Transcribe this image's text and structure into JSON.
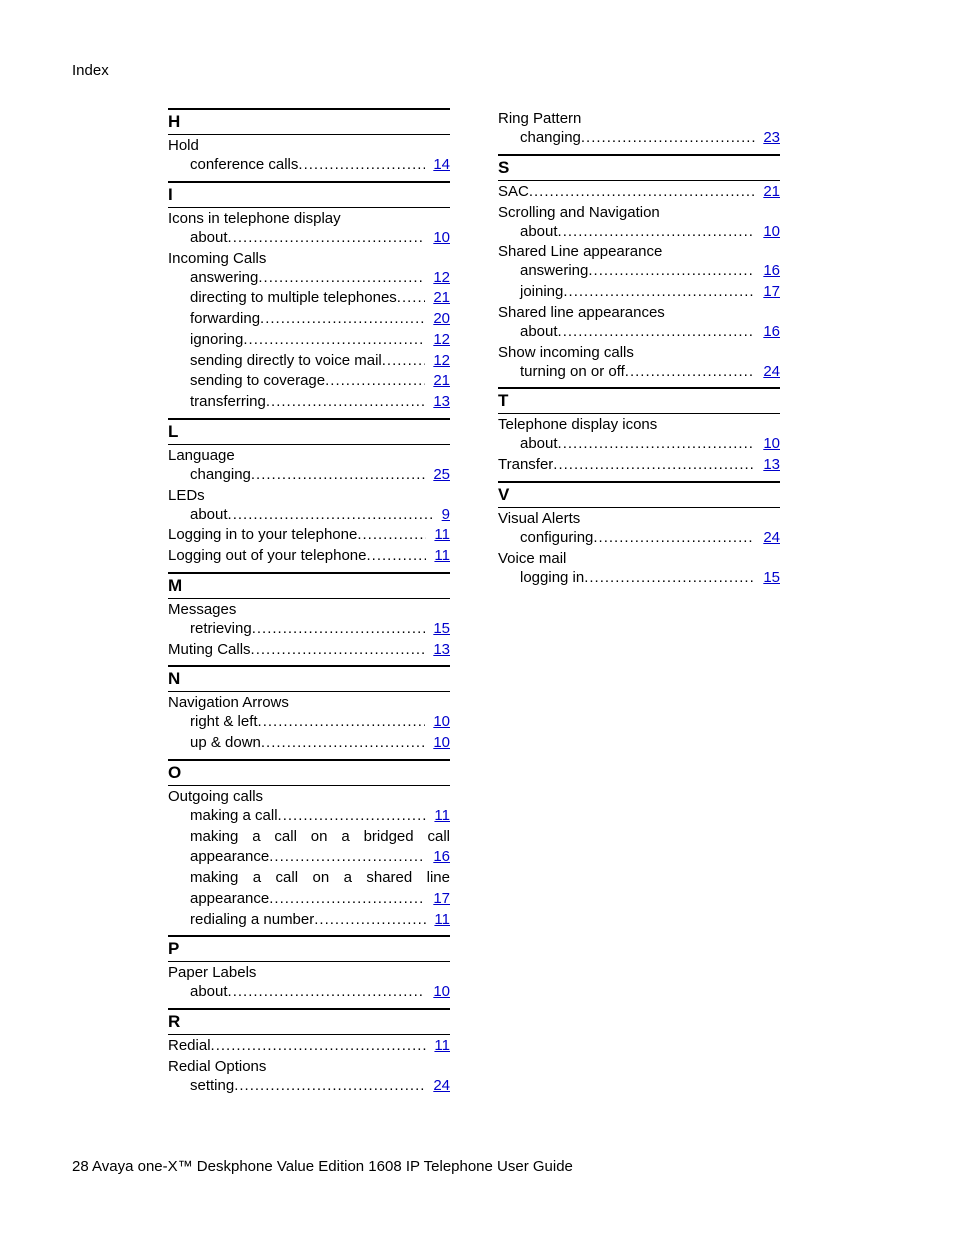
{
  "header": "Index",
  "footer": "28   Avaya one-X™ Deskphone Value Edition   1608 IP Telephone   User Guide",
  "link_color": "#0000cc",
  "left": [
    {
      "type": "letter",
      "text": "H"
    },
    {
      "type": "parent",
      "text": "Hold"
    },
    {
      "type": "sub",
      "text": "conference calls",
      "page": "14"
    },
    {
      "type": "letter",
      "text": "I"
    },
    {
      "type": "parent",
      "text": "Icons in telephone display"
    },
    {
      "type": "sub",
      "text": "about",
      "page": "10"
    },
    {
      "type": "parent",
      "text": "Incoming Calls"
    },
    {
      "type": "sub",
      "text": "answering",
      "page": "12"
    },
    {
      "type": "sub",
      "text": "directing to multiple telephones",
      "page": "21"
    },
    {
      "type": "sub",
      "text": "forwarding",
      "page": "20"
    },
    {
      "type": "sub",
      "text": "ignoring",
      "page": "12"
    },
    {
      "type": "sub",
      "text": "sending directly to voice mail",
      "page": "12"
    },
    {
      "type": "sub",
      "text": "sending to coverage",
      "page": "21"
    },
    {
      "type": "sub",
      "text": "transferring",
      "page": "13"
    },
    {
      "type": "letter",
      "text": "L"
    },
    {
      "type": "parent",
      "text": "Language"
    },
    {
      "type": "sub",
      "text": "changing",
      "page": "25"
    },
    {
      "type": "parent",
      "text": "LEDs"
    },
    {
      "type": "sub",
      "text": "about",
      "page": "9"
    },
    {
      "type": "top",
      "text": "Logging in to your telephone",
      "page": "11"
    },
    {
      "type": "top",
      "text": "Logging out of your telephone",
      "page": "11"
    },
    {
      "type": "letter",
      "text": "M"
    },
    {
      "type": "parent",
      "text": "Messages"
    },
    {
      "type": "sub",
      "text": "retrieving",
      "page": "15"
    },
    {
      "type": "top",
      "text": "Muting Calls",
      "page": "13"
    },
    {
      "type": "letter",
      "text": "N"
    },
    {
      "type": "parent",
      "text": "Navigation Arrows"
    },
    {
      "type": "sub",
      "text": "right & left",
      "page": "10"
    },
    {
      "type": "sub",
      "text": "up & down",
      "page": "10"
    },
    {
      "type": "letter",
      "text": "O"
    },
    {
      "type": "parent",
      "text": "Outgoing calls"
    },
    {
      "type": "sub",
      "text": "making a call",
      "page": "11"
    },
    {
      "type": "wrap-justify",
      "text": "making a call on a bridged call"
    },
    {
      "type": "wrap-end",
      "text": "appearance",
      "page": "16"
    },
    {
      "type": "wrap-justify",
      "text": "making a call on a shared line"
    },
    {
      "type": "wrap-end",
      "text": "appearance",
      "page": "17"
    },
    {
      "type": "sub",
      "text": "redialing a number",
      "page": "11"
    },
    {
      "type": "letter",
      "text": "P"
    },
    {
      "type": "parent",
      "text": "Paper Labels"
    },
    {
      "type": "sub",
      "text": "about",
      "page": "10"
    },
    {
      "type": "letter",
      "text": "R"
    },
    {
      "type": "top",
      "text": "Redial",
      "page": "11"
    },
    {
      "type": "parent",
      "text": "Redial Options"
    },
    {
      "type": "sub",
      "text": "setting",
      "page": "24"
    }
  ],
  "right": [
    {
      "type": "parent",
      "text": "Ring Pattern"
    },
    {
      "type": "sub",
      "text": "changing",
      "page": "23"
    },
    {
      "type": "letter",
      "text": "S"
    },
    {
      "type": "top",
      "text": "SAC",
      "page": "21"
    },
    {
      "type": "parent",
      "text": "Scrolling and Navigation"
    },
    {
      "type": "sub",
      "text": "about",
      "page": "10"
    },
    {
      "type": "parent",
      "text": "Shared Line appearance"
    },
    {
      "type": "sub",
      "text": "answering",
      "page": "16"
    },
    {
      "type": "sub",
      "text": "joining",
      "page": "17"
    },
    {
      "type": "parent",
      "text": "Shared line appearances"
    },
    {
      "type": "sub",
      "text": "about",
      "page": "16"
    },
    {
      "type": "parent",
      "text": "Show incoming calls"
    },
    {
      "type": "sub",
      "text": "turning on or off",
      "page": "24"
    },
    {
      "type": "letter",
      "text": "T"
    },
    {
      "type": "parent",
      "text": "Telephone display icons"
    },
    {
      "type": "sub",
      "text": "about",
      "page": "10"
    },
    {
      "type": "top",
      "text": "Transfer",
      "page": "13"
    },
    {
      "type": "letter",
      "text": "V"
    },
    {
      "type": "parent",
      "text": "Visual Alerts"
    },
    {
      "type": "sub",
      "text": "configuring",
      "page": "24"
    },
    {
      "type": "parent",
      "text": "Voice mail"
    },
    {
      "type": "sub",
      "text": "logging in",
      "page": "15"
    }
  ]
}
